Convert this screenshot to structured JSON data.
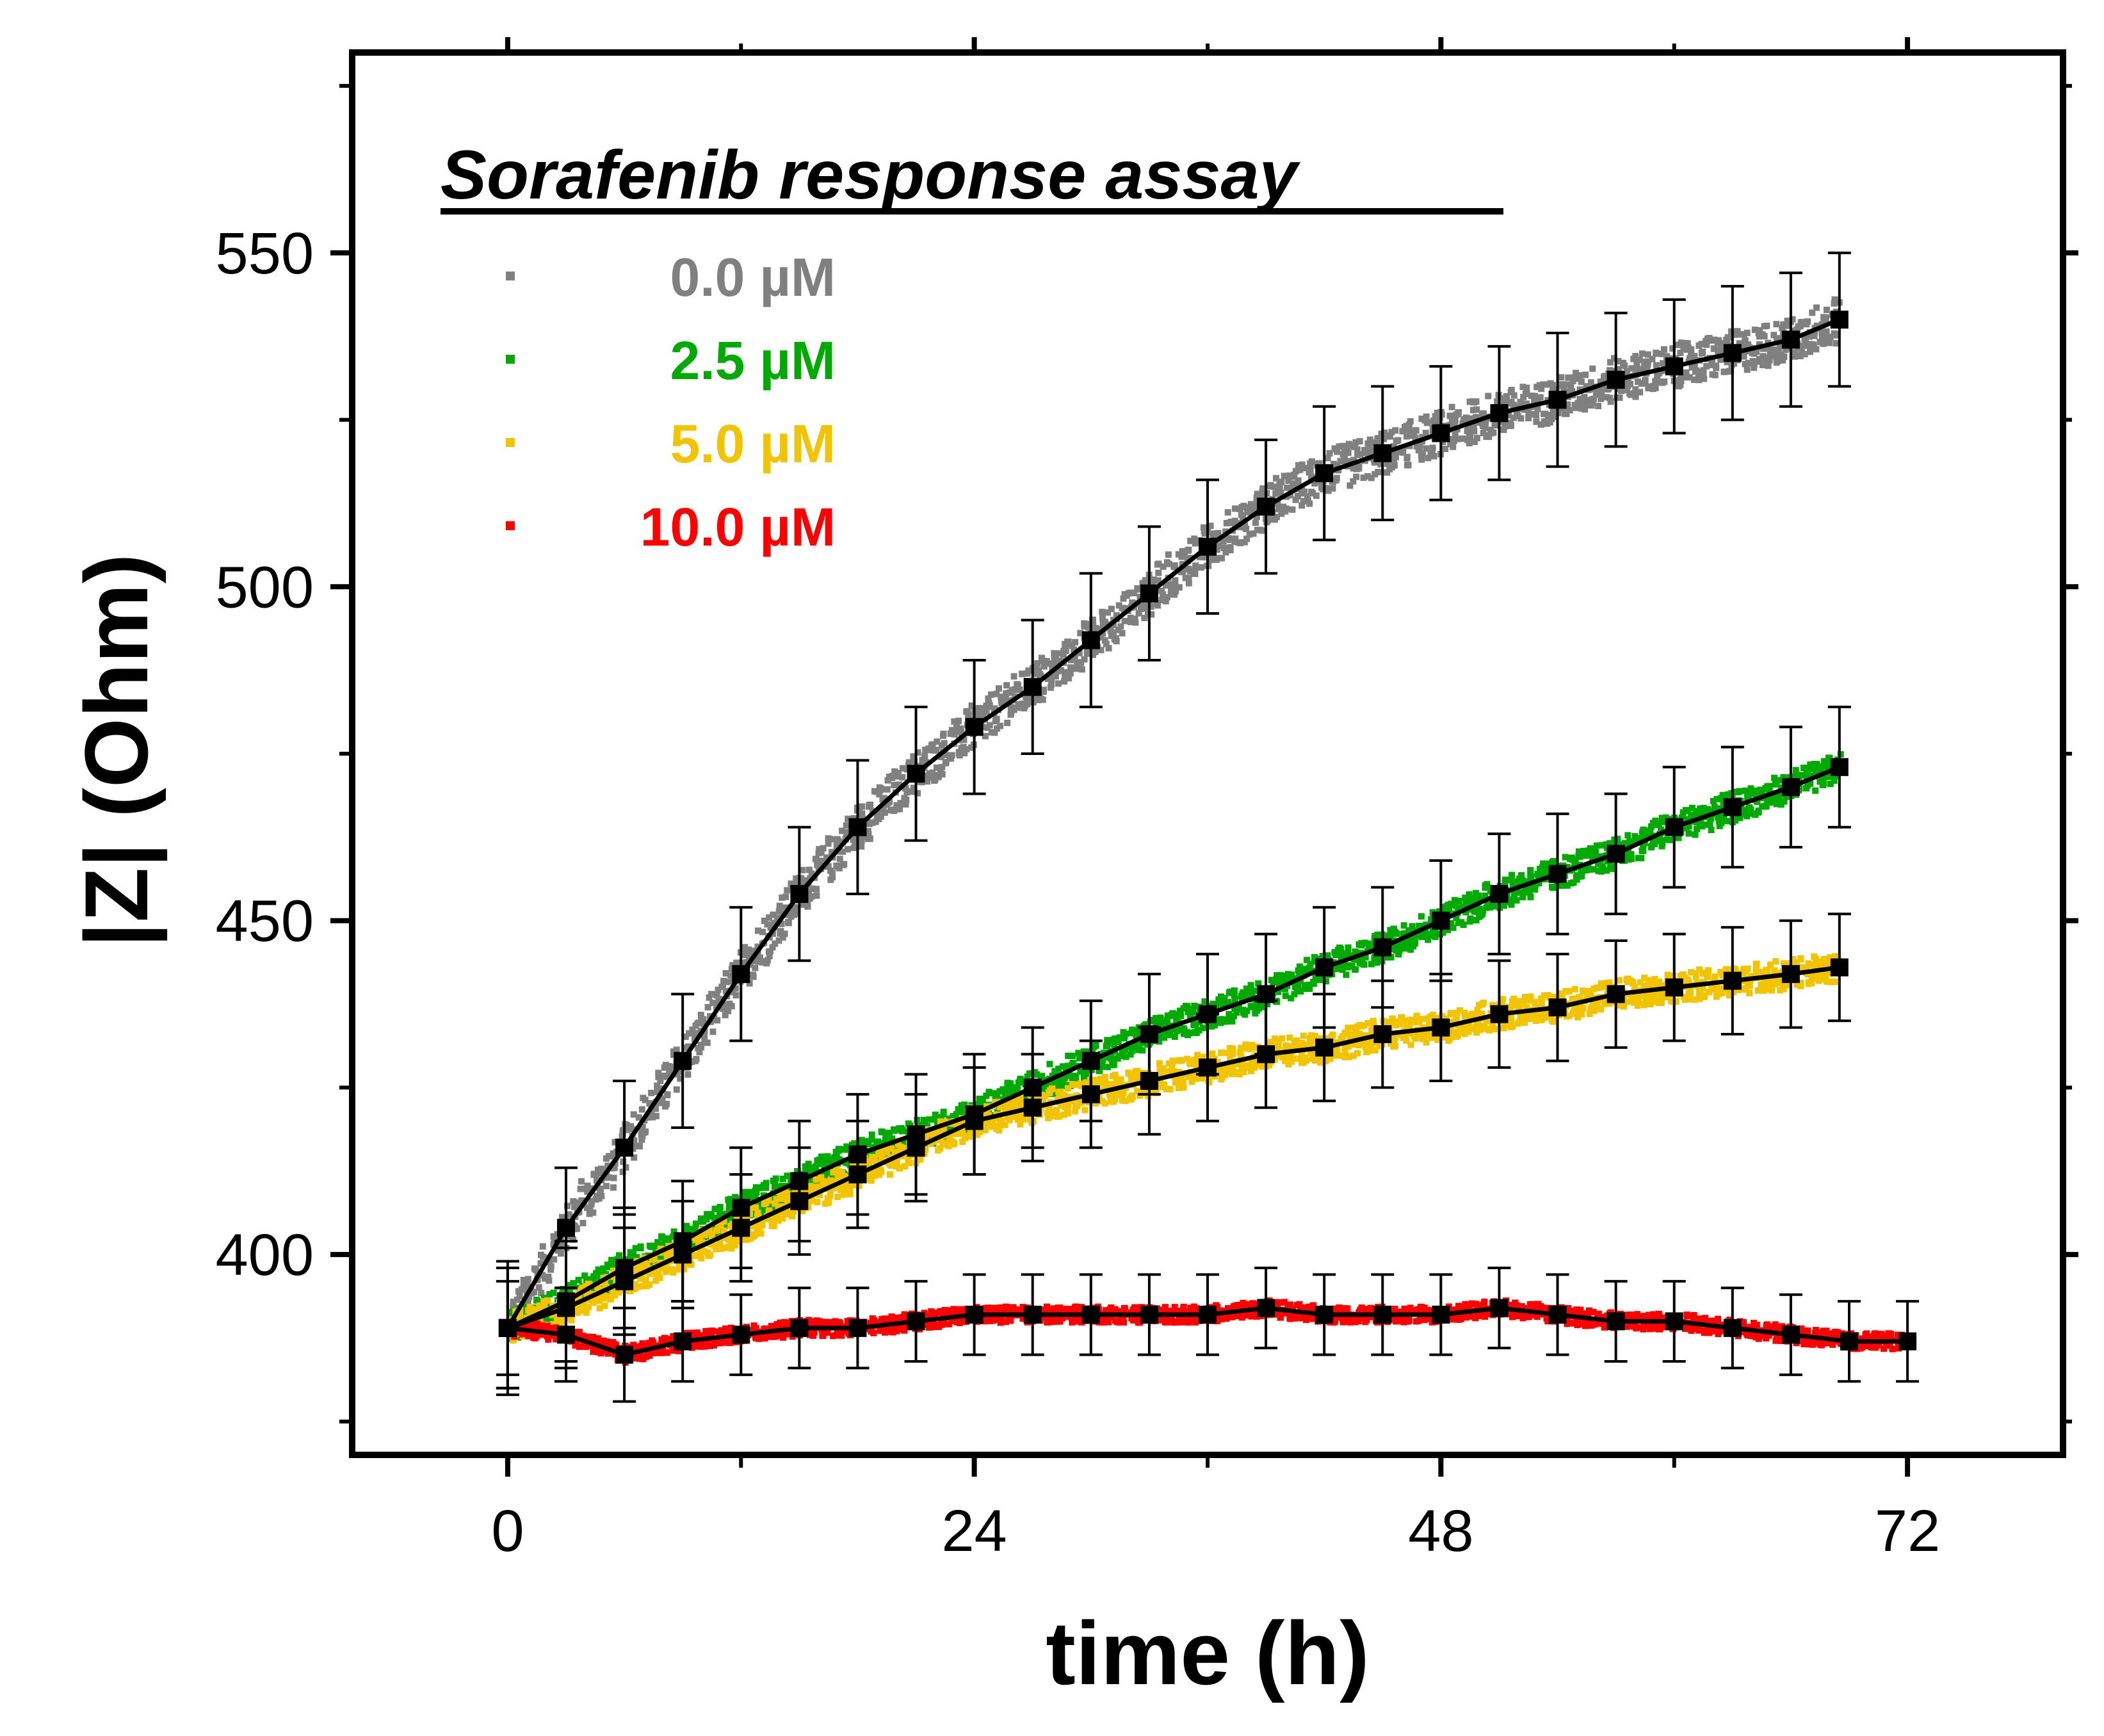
{
  "chart_data": {
    "type": "scatter",
    "title": "Sorafenib response assay",
    "xlabel": "time (h)",
    "ylabel": "|Z| (Ohm)",
    "xlim": [
      -8,
      80
    ],
    "ylim": [
      370,
      580
    ],
    "xticks": [
      0,
      24,
      48,
      72
    ],
    "yticks": [
      400,
      450,
      500,
      550
    ],
    "x_tick_labels": [
      "0",
      "24",
      "48",
      "72"
    ],
    "y_tick_labels": [
      "400",
      "450",
      "500",
      "550"
    ],
    "legend_position": "top-left",
    "series": [
      {
        "name": "0.0 µM",
        "color": "#808080",
        "x": [
          0,
          3,
          6,
          9,
          12,
          15,
          18,
          21,
          24,
          27,
          30,
          33,
          36,
          39,
          42,
          45,
          48,
          51,
          54,
          57,
          60,
          63,
          66,
          68.5
        ],
        "mean": [
          389,
          404,
          416,
          429,
          442,
          454,
          464,
          472,
          479,
          485,
          492,
          499,
          506,
          512,
          517,
          520,
          523,
          526,
          528,
          531,
          533,
          535,
          537,
          540
        ],
        "err": [
          10,
          9,
          10,
          10,
          10,
          10,
          10,
          10,
          10,
          10,
          10,
          10,
          10,
          10,
          10,
          10,
          10,
          10,
          10,
          10,
          10,
          10,
          10,
          10
        ]
      },
      {
        "name": "2.5 µM",
        "color": "#00aa00",
        "x": [
          0,
          3,
          6,
          9,
          12,
          15,
          18,
          21,
          24,
          27,
          30,
          33,
          36,
          39,
          42,
          45,
          48,
          51,
          54,
          57,
          60,
          63,
          66,
          68.5
        ],
        "mean": [
          389,
          393,
          398,
          402,
          407,
          411,
          415,
          418,
          421,
          425,
          429,
          433,
          436,
          439,
          443,
          446,
          450,
          454,
          457,
          460,
          464,
          467,
          470,
          473
        ],
        "err": [
          9,
          9,
          9,
          9,
          9,
          9,
          9,
          9,
          9,
          9,
          9,
          9,
          9,
          9,
          9,
          9,
          9,
          9,
          9,
          9,
          9,
          9,
          9,
          9
        ]
      },
      {
        "name": "5.0 µM",
        "color": "#f2c400",
        "x": [
          0,
          3,
          6,
          9,
          12,
          15,
          18,
          21,
          24,
          27,
          30,
          33,
          36,
          39,
          42,
          45,
          48,
          51,
          54,
          57,
          60,
          63,
          66,
          68.5
        ],
        "mean": [
          389,
          392,
          396,
          400,
          404,
          408,
          412,
          416,
          420,
          422,
          424,
          426,
          428,
          430,
          431,
          433,
          434,
          436,
          437,
          439,
          440,
          441,
          442,
          443
        ],
        "err": [
          9,
          9,
          8,
          8,
          8,
          8,
          8,
          8,
          8,
          8,
          8,
          8,
          8,
          8,
          8,
          8,
          8,
          8,
          8,
          8,
          8,
          8,
          8,
          8
        ]
      },
      {
        "name": "10.0 µM",
        "color": "#ff0000",
        "x": [
          0,
          3,
          6,
          9,
          12,
          15,
          18,
          21,
          24,
          27,
          30,
          33,
          36,
          39,
          42,
          45,
          48,
          51,
          54,
          57,
          60,
          63,
          66,
          69,
          72
        ],
        "mean": [
          389,
          388,
          385,
          387,
          388,
          389,
          389,
          390,
          391,
          391,
          391,
          391,
          391,
          392,
          391,
          391,
          391,
          392,
          391,
          390,
          390,
          389,
          388,
          387,
          387
        ],
        "err": [
          7,
          7,
          7,
          6,
          6,
          6,
          6,
          6,
          6,
          6,
          6,
          6,
          6,
          6,
          6,
          6,
          6,
          6,
          6,
          6,
          6,
          6,
          6,
          6,
          6
        ]
      }
    ]
  }
}
